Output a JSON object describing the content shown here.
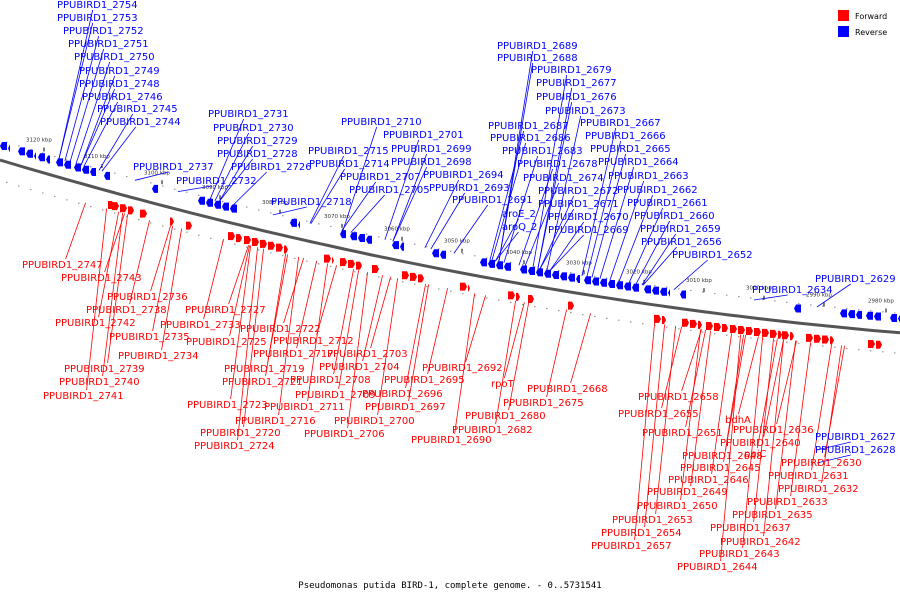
{
  "legend": {
    "forward_label": "Forward",
    "reverse_label": "Reverse",
    "forward_color": "#ff0000",
    "reverse_color": "#0000ff"
  },
  "caption": "Pseudomonas putida BIRD-1, complete genome. - 0..5731541",
  "axis_kbp": [
    "3120 kbp",
    "3110 kbp",
    "3100 kbp",
    "3090 kbp",
    "3080 kbp",
    "3070 kbp",
    "3060 kbp",
    "3050 kbp",
    "3040 kbp",
    "3030 kbp",
    "3020 kbp",
    "3010 kbp",
    "3000 kbp",
    "2990 kbp",
    "2980 kbp"
  ],
  "reverse_labels": [
    "PPUBIRD1_2754",
    "PPUBIRD1_2753",
    "PPUBIRD1_2752",
    "PPUBIRD1_2751",
    "PPUBIRD1_2750",
    "PPUBIRD1_2749",
    "PPUBIRD1_2748",
    "PPUBIRD1_2746",
    "PPUBIRD1_2745",
    "PPUBIRD1_2744",
    "PPUBIRD1_2737",
    "PPUBIRD1_2732",
    "PPUBIRD1_2731",
    "PPUBIRD1_2730",
    "PPUBIRD1_2729",
    "PPUBIRD1_2728",
    "PPUBIRD1_2726",
    "PPUBIRD1_2718",
    "PPUBIRD1_2710",
    "PPUBIRD1_2701",
    "PPUBIRD1_2715",
    "PPUBIRD1_2699",
    "PPUBIRD1_2714",
    "PPUBIRD1_2698",
    "PPUBIRD1_2707",
    "PPUBIRD1_2694",
    "PPUBIRD1_2705",
    "PPUBIRD1_2693",
    "PPUBIRD1_2689",
    "PPUBIRD1_2688",
    "PPUBIRD1_2679",
    "PPUBIRD1_2677",
    "PPUBIRD1_2676",
    "PPUBIRD1_2673",
    "PPUBIRD1_2687",
    "PPUBIRD1_2667",
    "PPUBIRD1_2686",
    "PPUBIRD1_2666",
    "PPUBIRD1_2683",
    "PPUBIRD1_2665",
    "PPUBIRD1_2678",
    "PPUBIRD1_2664",
    "PPUBIRD1_2674",
    "PPUBIRD1_2663",
    "PPUBIRD1_2672",
    "PPUBIRD1_2662",
    "PPUBIRD1_2691",
    "PPUBIRD1_2671",
    "PPUBIRD1_2661",
    "aroE_2",
    "PPUBIRD1_2670",
    "PPUBIRD1_2660",
    "aroQ_2",
    "PPUBIRD1_2669",
    "PPUBIRD1_2659",
    "PPUBIRD1_2656",
    "PPUBIRD1_2652",
    "PPUBIRD1_2629",
    "PPUBIRD1_2634",
    "PPUBIRD1_2627",
    "PPUBIRD1_2628"
  ],
  "forward_labels": [
    "PPUBIRD1_2747",
    "PPUBIRD1_2743",
    "PPUBIRD1_2736",
    "PPUBIRD1_2738",
    "PPUBIRD1_2742",
    "PPUBIRD1_2733",
    "PPUBIRD1_2735",
    "PPUBIRD1_2734",
    "PPUBIRD1_2739",
    "PPUBIRD1_2740",
    "PPUBIRD1_2741",
    "PPUBIRD1_2727",
    "PPUBIRD1_2722",
    "PPUBIRD1_2725",
    "PPUBIRD1_2712",
    "PPUBIRD1_2717",
    "PPUBIRD1_2703",
    "PPUBIRD1_2719",
    "PPUBIRD1_2704",
    "PPUBIRD1_2721",
    "PPUBIRD1_2708",
    "PPUBIRD1_2695",
    "PPUBIRD1_2709",
    "PPUBIRD1_2696",
    "PPUBIRD1_2723",
    "PPUBIRD1_2711",
    "PPUBIRD1_2697",
    "PPUBIRD1_2716",
    "PPUBIRD1_2700",
    "PPUBIRD1_2720",
    "PPUBIRD1_2706",
    "PPUBIRD1_2724",
    "PPUBIRD1_2692",
    "rpoT",
    "PPUBIRD1_2675",
    "PPUBIRD1_2680",
    "PPUBIRD1_2682",
    "PPUBIRD1_2690",
    "PPUBIRD1_2668",
    "PPUBIRD1_2658",
    "PPUBIRD1_2655",
    "bdhA",
    "PPUBIRD1_2651",
    "PPUBIRD1_2636",
    "PPUBIRD1_2640",
    "PPUBIRD1_2648",
    "ppiC",
    "PPUBIRD1_2645",
    "PPUBIRD1_2630",
    "PPUBIRD1_2646",
    "PPUBIRD1_2631",
    "PPUBIRD1_2649",
    "PPUBIRD1_2632",
    "PPUBIRD1_2650",
    "PPUBIRD1_2633",
    "PPUBIRD1_2653",
    "PPUBIRD1_2635",
    "PPUBIRD1_2654",
    "PPUBIRD1_2637",
    "PPUBIRD1_2657",
    "PPUBIRD1_2642",
    "PPUBIRD1_2643",
    "PPUBIRD1_2644"
  ]
}
